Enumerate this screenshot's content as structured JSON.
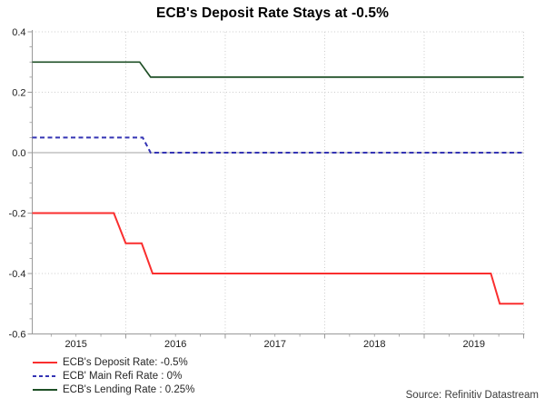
{
  "title": "ECB's Deposit Rate Stays at -0.5%",
  "source": "Source: Refinitiv Datastream",
  "chart_data": {
    "type": "line",
    "title": "ECB's Deposit Rate Stays at -0.5%",
    "xlim": [
      2015.06,
      2020.0
    ],
    "ylim": [
      -0.6,
      0.4
    ],
    "grid": true,
    "legend_position": "bottom-left",
    "x_grid_years": [
      2016,
      2017,
      2018,
      2019,
      2020
    ],
    "x_labels": [
      {
        "text": "2015",
        "at": 2015.5
      },
      {
        "text": "2016",
        "at": 2016.5
      },
      {
        "text": "2017",
        "at": 2017.5
      },
      {
        "text": "2018",
        "at": 2018.5
      },
      {
        "text": "2019",
        "at": 2019.5
      }
    ],
    "y_ticks": [
      0.4,
      0.2,
      0.0,
      -0.2,
      -0.4,
      -0.6
    ],
    "y_minor_step": 0.05,
    "x_minor_step": 0.25,
    "colors": {
      "grid": "#cccccc",
      "zero_line": "#b3b3b3",
      "spine": "#999999",
      "tick_label": "#1c1c1c"
    },
    "series": [
      {
        "name": "deposit-rate",
        "legend_label": "ECB's Deposit Rate: -0.5%",
        "color": "#fa2e2e",
        "dash": null,
        "width": 2,
        "points": [
          [
            2015.06,
            -0.2
          ],
          [
            2015.88,
            -0.2
          ],
          [
            2016.0,
            -0.3
          ],
          [
            2016.16,
            -0.3
          ],
          [
            2016.27,
            -0.4
          ],
          [
            2019.67,
            -0.4
          ],
          [
            2019.76,
            -0.5
          ],
          [
            2020.0,
            -0.5
          ]
        ]
      },
      {
        "name": "main-refi-rate",
        "legend_label": "ECB' Main Refi Rate : 0%",
        "color": "#3434b4",
        "dash": "5 3.5",
        "width": 2,
        "points": [
          [
            2015.06,
            0.05
          ],
          [
            2016.17,
            0.05
          ],
          [
            2016.25,
            0.0
          ],
          [
            2020.0,
            0.0
          ]
        ]
      },
      {
        "name": "lending-rate",
        "legend_label": "ECB's Lending Rate : 0.25%",
        "color": "#1e4f26",
        "dash": null,
        "width": 1.7,
        "points": [
          [
            2015.06,
            0.3
          ],
          [
            2016.14,
            0.3
          ],
          [
            2016.25,
            0.25
          ],
          [
            2020.0,
            0.25
          ]
        ]
      }
    ]
  }
}
